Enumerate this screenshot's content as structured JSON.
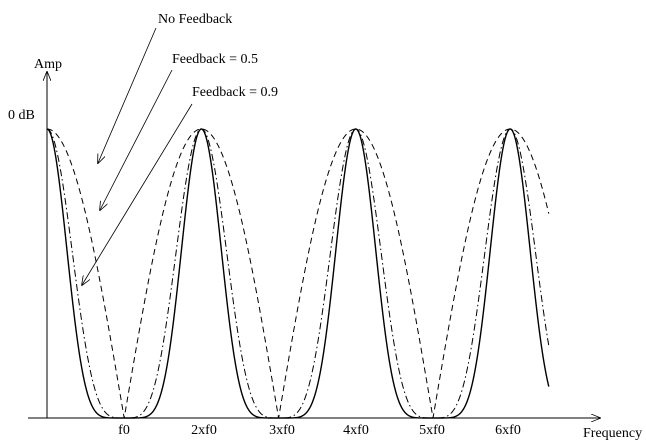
{
  "chart_data": {
    "type": "line",
    "ylabel": "Amp",
    "ytick_label": "0 dB",
    "xlabel": "Frequency",
    "x_ticks": [
      "f0",
      "2xf0",
      "3xf0",
      "4xf0",
      "5xf0",
      "6xf0"
    ],
    "x_range_in_f0": [
      -0.5,
      6.5
    ],
    "series": [
      {
        "name": "No Feedback",
        "feedback": 0.0,
        "line_style": "dashed"
      },
      {
        "name": "Feedback = 0.5",
        "feedback": 0.5,
        "line_style": "dash-dot"
      },
      {
        "name": "Feedback = 0.9",
        "feedback": 0.9,
        "line_style": "solid"
      }
    ],
    "peaks_at_f0_multiples": [
      0,
      2,
      4,
      6
    ],
    "nulls_at_f0_multiples": [
      1,
      3,
      5
    ]
  },
  "colors": {
    "line": "#000000",
    "background": "#ffffff"
  }
}
